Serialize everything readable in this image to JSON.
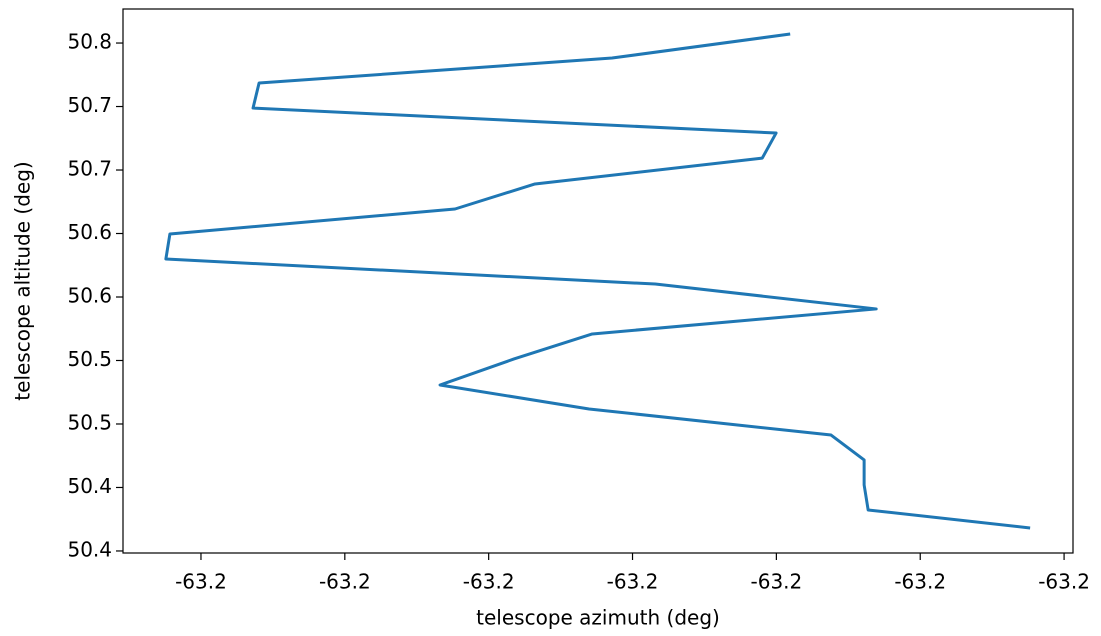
{
  "chart_data": {
    "type": "line",
    "x_label": "telescope azimuth (deg)",
    "y_label": "telescope altitude (deg)",
    "xlim": [
      -63.21771,
      -63.18469
    ],
    "ylim": [
      50.3984,
      50.8268
    ],
    "xticks": [
      {
        "value": -63.215,
        "label": "-63.2"
      },
      {
        "value": -63.21,
        "label": "-63.2"
      },
      {
        "value": -63.205,
        "label": "-63.2"
      },
      {
        "value": -63.2,
        "label": "-63.2"
      },
      {
        "value": -63.195,
        "label": "-63.2"
      },
      {
        "value": -63.19,
        "label": "-63.2"
      },
      {
        "value": -63.185,
        "label": "-63.2"
      }
    ],
    "yticks": [
      {
        "value": 50.4,
        "label": "50.4"
      },
      {
        "value": 50.45,
        "label": "50.4"
      },
      {
        "value": 50.5,
        "label": "50.5"
      },
      {
        "value": 50.55,
        "label": "50.5"
      },
      {
        "value": 50.6,
        "label": "50.6"
      },
      {
        "value": 50.65,
        "label": "50.6"
      },
      {
        "value": 50.7,
        "label": "50.7"
      },
      {
        "value": 50.75,
        "label": "50.7"
      },
      {
        "value": 50.8,
        "label": "50.8"
      }
    ],
    "color": "#1f77b4",
    "x": [
      -63.19452,
      -63.20071,
      -63.21298,
      -63.21319,
      -63.19501,
      -63.19549,
      -63.20339,
      -63.20617,
      -63.21608,
      -63.21622,
      -63.19921,
      -63.19153,
      -63.2014,
      -63.20412,
      -63.20669,
      -63.20151,
      -63.1931,
      -63.19195,
      -63.19195,
      -63.19181,
      -63.18618
    ],
    "values": [
      50.8071,
      50.7882,
      50.7685,
      50.7488,
      50.7291,
      50.7094,
      50.689,
      50.6693,
      50.6496,
      50.6299,
      50.6102,
      50.5906,
      50.5709,
      50.5512,
      50.5307,
      50.5118,
      50.4913,
      50.4717,
      50.452,
      50.4323,
      50.4181
    ]
  }
}
